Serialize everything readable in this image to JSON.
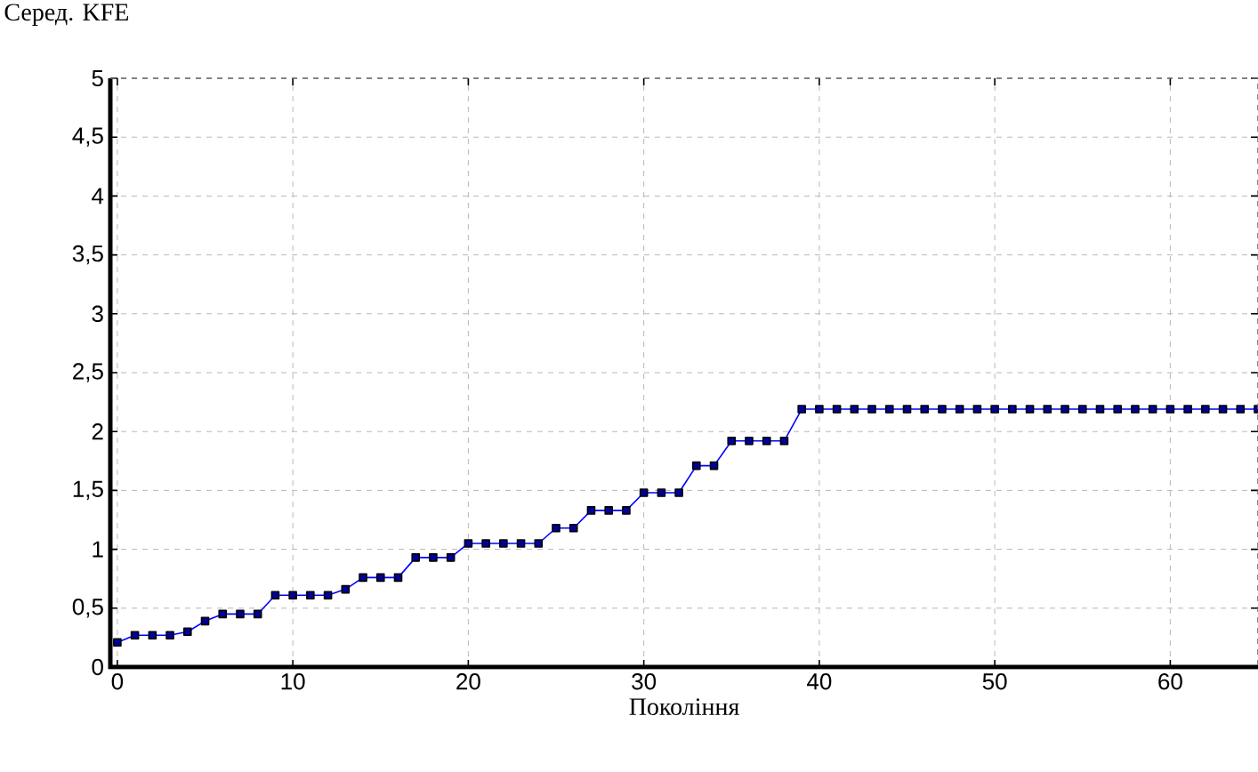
{
  "chart_data": {
    "type": "line",
    "ylabel": "Серед. KFE",
    "xlabel": "Покоління",
    "x": [
      0,
      1,
      2,
      3,
      4,
      5,
      6,
      7,
      8,
      9,
      10,
      11,
      12,
      13,
      14,
      15,
      16,
      17,
      18,
      19,
      20,
      21,
      22,
      23,
      24,
      25,
      26,
      27,
      28,
      29,
      30,
      31,
      32,
      33,
      34,
      35,
      36,
      37,
      38,
      39,
      40,
      41,
      42,
      43,
      44,
      45,
      46,
      47,
      48,
      49,
      50,
      51,
      52,
      53,
      54,
      55,
      56,
      57,
      58,
      59,
      60,
      61,
      62,
      63,
      64,
      65
    ],
    "series": [
      {
        "color": "#0000ff",
        "values": [
          0.21,
          0.27,
          0.27,
          0.27,
          0.3,
          0.39,
          0.45,
          0.45,
          0.45,
          0.61,
          0.61,
          0.61,
          0.61,
          0.66,
          0.76,
          0.76,
          0.76,
          0.93,
          0.93,
          0.93,
          1.05,
          1.05,
          1.05,
          1.05,
          1.05,
          1.18,
          1.18,
          1.33,
          1.33,
          1.33,
          1.48,
          1.48,
          1.48,
          1.71,
          1.71,
          1.92,
          1.92,
          1.92,
          1.92,
          2.19,
          2.19,
          2.19,
          2.19,
          2.19,
          2.19,
          2.19,
          2.19,
          2.19,
          2.19,
          2.19,
          2.19,
          2.19,
          2.19,
          2.19,
          2.19,
          2.19,
          2.19,
          2.19,
          2.19,
          2.19,
          2.19,
          2.19,
          2.19,
          2.19,
          2.19,
          2.19
        ]
      }
    ],
    "xlim": [
      -0.4,
      65
    ],
    "ylim": [
      0,
      5
    ],
    "xticks": [
      0,
      10,
      20,
      30,
      40,
      50,
      60
    ],
    "yticks": [
      0,
      {
        "value": 0.5,
        "label": "0,5"
      },
      1,
      {
        "value": 1.5,
        "label": "1,5"
      },
      2,
      {
        "value": 2.5,
        "label": "2,5"
      },
      3,
      {
        "value": 3.5,
        "label": "3,5"
      },
      4,
      {
        "value": 4.5,
        "label": "4,5"
      },
      5
    ],
    "grid": true,
    "marker": "square",
    "line_style": "solid"
  }
}
